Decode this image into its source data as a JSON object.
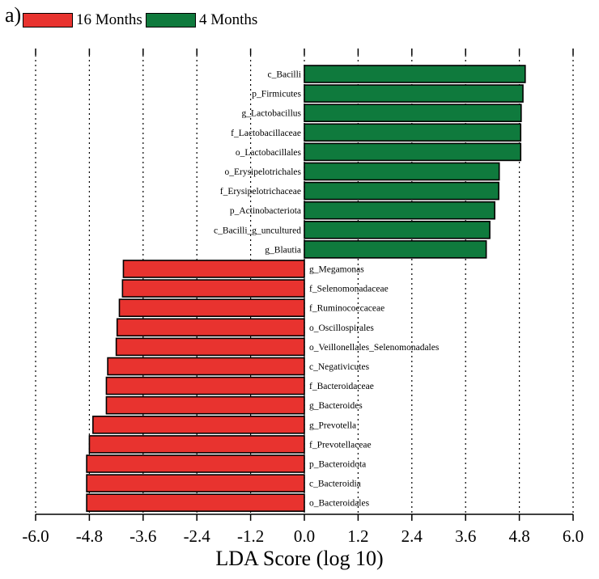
{
  "panel_label": "a)",
  "colors": {
    "16 Months": "#e8332f",
    "4 Months": "#0f7a3d"
  },
  "chart_data": {
    "type": "bar",
    "orientation": "horizontal",
    "xlabel": "LDA Score (log 10)",
    "xlim": [
      -6.0,
      6.0
    ],
    "xticks": [
      "-6.0",
      "-4.8",
      "-3.6",
      "-2.4",
      "-1.2",
      "0.0",
      "1.2",
      "2.4",
      "3.6",
      "4.8",
      "6.0"
    ],
    "grid": "vertical dotted",
    "legend": [
      {
        "name": "16 Months",
        "color": "#e8332f"
      },
      {
        "name": "4 Months",
        "color": "#0f7a3d"
      }
    ],
    "legend_position": "top-left",
    "bars": [
      {
        "label": "c_Bacilli",
        "value": 4.93,
        "group": "4 Months"
      },
      {
        "label": "p_Firmicutes",
        "value": 4.88,
        "group": "4 Months"
      },
      {
        "label": "g_Lactobacillus",
        "value": 4.84,
        "group": "4 Months"
      },
      {
        "label": "f_Lactobacillaceae",
        "value": 4.83,
        "group": "4 Months"
      },
      {
        "label": "o_Lactobacillales",
        "value": 4.83,
        "group": "4 Months"
      },
      {
        "label": "o_Erysipelotrichales",
        "value": 4.35,
        "group": "4 Months"
      },
      {
        "label": "f_Erysipelotrichaceae",
        "value": 4.34,
        "group": "4 Months"
      },
      {
        "label": "p_Actinobacteriota",
        "value": 4.25,
        "group": "4 Months"
      },
      {
        "label": "c_Bacilli_g_uncultured",
        "value": 4.14,
        "group": "4 Months"
      },
      {
        "label": "g_Blautia",
        "value": 4.06,
        "group": "4 Months"
      },
      {
        "label": "g_Megamonas",
        "value": -4.04,
        "group": "16 Months"
      },
      {
        "label": "f_Selenomonadaceae",
        "value": -4.06,
        "group": "16 Months"
      },
      {
        "label": "f_Ruminococcaceae",
        "value": -4.13,
        "group": "16 Months"
      },
      {
        "label": "o_Oscillospirales",
        "value": -4.18,
        "group": "16 Months"
      },
      {
        "label": "o_Veillonellales_Selenomonadales",
        "value": -4.2,
        "group": "16 Months"
      },
      {
        "label": "c_Negativicutes",
        "value": -4.39,
        "group": "16 Months"
      },
      {
        "label": "f_Bacteroidaceae",
        "value": -4.42,
        "group": "16 Months"
      },
      {
        "label": "g_Bacteroides",
        "value": -4.42,
        "group": "16 Months"
      },
      {
        "label": "g_Prevotella",
        "value": -4.72,
        "group": "16 Months"
      },
      {
        "label": "f_Prevotellaceae",
        "value": -4.8,
        "group": "16 Months"
      },
      {
        "label": "p_Bacteroidota",
        "value": -4.86,
        "group": "16 Months"
      },
      {
        "label": "c_Bacteroidia",
        "value": -4.86,
        "group": "16 Months"
      },
      {
        "label": "o_Bacteroidales",
        "value": -4.86,
        "group": "16 Months"
      }
    ]
  }
}
